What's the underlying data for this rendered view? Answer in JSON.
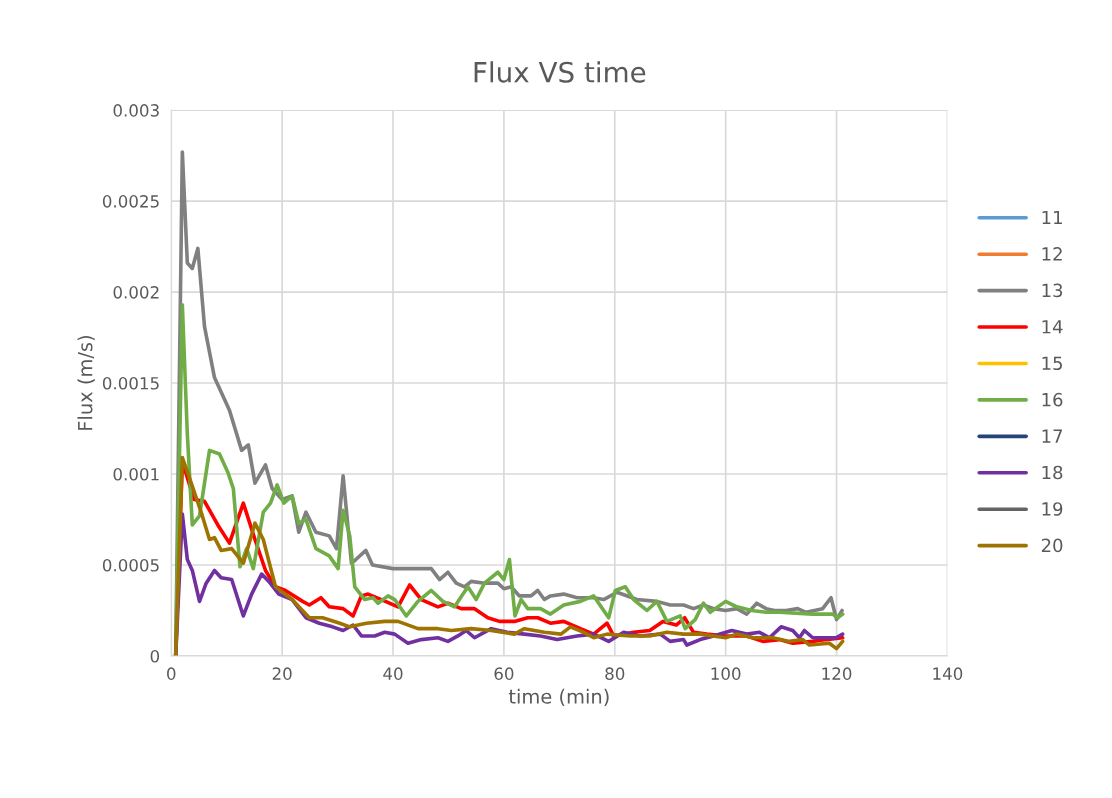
{
  "chart_data": {
    "type": "line",
    "title": "Flux VS time",
    "xlabel": "time (min)",
    "ylabel": "Flux (m/s)",
    "xlim": [
      0,
      140
    ],
    "xticks": [
      0,
      20,
      40,
      60,
      80,
      100,
      120,
      140
    ],
    "ylim": [
      0,
      0.003
    ],
    "yticks": [
      {
        "value": 0,
        "label": "0"
      },
      0.0005,
      0.001,
      0.0015,
      0.002,
      0.0025,
      0.003
    ],
    "grid": true,
    "legend": "right",
    "marker": "none",
    "line_style": "solid",
    "series": [
      {
        "name": "11",
        "color": "#5b9bd5"
      },
      {
        "name": "12",
        "color": "#ed7d31"
      },
      {
        "name": "13",
        "color": "#808080",
        "x": [
          0.8,
          2.0,
          2.9,
          3.8,
          4.8,
          6.0,
          7.8,
          10.5,
          12.7,
          13.9,
          15.1,
          17.0,
          18.2,
          20.0,
          21.8,
          23.0,
          24.3,
          26.1,
          28.5,
          29.8,
          31.0,
          32.5,
          33.3,
          35.1,
          36.3,
          40.0,
          43.3,
          46.9,
          48.4,
          49.9,
          51.4,
          52.9,
          54.1,
          56.5,
          58.9,
          60.0,
          61.3,
          62.8,
          64.9,
          66.1,
          67.3,
          68.4,
          70.8,
          73.2,
          76.2,
          78.0,
          80.4,
          84.0,
          87.6,
          90.0,
          92.4,
          94.2,
          96.0,
          97.8,
          100.0,
          102.0,
          103.8,
          105.6,
          107.3,
          108.8,
          110.9,
          113.0,
          114.5,
          117.5,
          119.0,
          120.0,
          121.0
        ],
        "values": [
          0,
          0.00277,
          0.00216,
          0.00213,
          0.00224,
          0.00181,
          0.00153,
          0.00135,
          0.00113,
          0.00116,
          0.00095,
          0.00105,
          0.00092,
          0.00086,
          0.00088,
          0.00068,
          0.00079,
          0.00068,
          0.00066,
          0.00059,
          0.00099,
          0.00051,
          0.00053,
          0.00058,
          0.0005,
          0.00048,
          0.00048,
          0.00048,
          0.00042,
          0.00046,
          0.0004,
          0.00038,
          0.00041,
          0.0004,
          0.0004,
          0.00037,
          0.00038,
          0.00033,
          0.00033,
          0.00036,
          0.00031,
          0.00033,
          0.00034,
          0.00032,
          0.00032,
          0.00031,
          0.00035,
          0.00031,
          0.0003,
          0.00028,
          0.00028,
          0.00026,
          0.00028,
          0.00026,
          0.00025,
          0.00026,
          0.00023,
          0.00029,
          0.00026,
          0.00025,
          0.00025,
          0.00026,
          0.00024,
          0.00026,
          0.00032,
          0.0002,
          0.00025
        ]
      },
      {
        "name": "14",
        "color": "#ff0000",
        "x": [
          0.8,
          2.0,
          4.1,
          6.0,
          8.4,
          10.5,
          13.0,
          15.1,
          17.0,
          18.8,
          20.6,
          23.7,
          24.9,
          27.0,
          28.5,
          31.0,
          32.8,
          34.3,
          35.5,
          37.9,
          40.9,
          43.0,
          45.1,
          48.1,
          49.9,
          52.3,
          54.7,
          57.1,
          59.2,
          61.9,
          64.3,
          66.1,
          68.4,
          70.8,
          73.8,
          76.2,
          78.6,
          79.8,
          83.4,
          86.3,
          88.7,
          91.1,
          92.6,
          93.6,
          94.2,
          96.6,
          100.0,
          103.8,
          106.7,
          109.7,
          112.1,
          115.7,
          118.1,
          121.1
        ],
        "values": [
          0,
          0.00107,
          0.00086,
          0.00085,
          0.00072,
          0.00062,
          0.00084,
          0.00064,
          0.00047,
          0.00038,
          0.00036,
          0.0003,
          0.00028,
          0.00032,
          0.00027,
          0.00026,
          0.00022,
          0.00033,
          0.00034,
          0.00031,
          0.00027,
          0.00039,
          0.00031,
          0.00027,
          0.00029,
          0.00026,
          0.00026,
          0.00021,
          0.00019,
          0.00019,
          0.00021,
          0.00021,
          0.00018,
          0.00019,
          0.00015,
          0.00012,
          0.00018,
          0.00011,
          0.00013,
          0.00014,
          0.00019,
          0.00017,
          0.00021,
          0.00016,
          0.00013,
          0.00012,
          0.00011,
          0.00011,
          8e-05,
          9e-05,
          7e-05,
          8e-05,
          9e-05,
          0.0001
        ]
      },
      {
        "name": "15",
        "color": "#ffc000"
      },
      {
        "name": "16",
        "color": "#70ad47",
        "x": [
          0.8,
          2.0,
          2.9,
          3.8,
          5.1,
          6.9,
          8.7,
          10.2,
          11.2,
          12.4,
          13.6,
          14.8,
          16.6,
          17.9,
          19.1,
          20.3,
          21.8,
          23.0,
          24.3,
          26.1,
          28.5,
          30.1,
          31.0,
          32.2,
          33.1,
          34.9,
          36.4,
          37.3,
          39.1,
          40.3,
          42.4,
          44.5,
          46.9,
          49.0,
          51.1,
          53.5,
          55.0,
          56.5,
          58.9,
          60.0,
          61.0,
          62.0,
          63.1,
          64.3,
          66.6,
          68.4,
          70.8,
          73.8,
          76.2,
          78.9,
          80.1,
          81.9,
          83.4,
          85.8,
          87.6,
          89.4,
          91.8,
          92.7,
          94.5,
          96.0,
          97.2,
          100.0,
          102.0,
          104.7,
          107.3,
          109.7,
          115.7,
          119.3,
          120.2,
          121.1
        ],
        "values": [
          0,
          0.00193,
          0.00122,
          0.00072,
          0.00077,
          0.00113,
          0.00111,
          0.00101,
          0.00092,
          0.00049,
          0.00059,
          0.00048,
          0.00079,
          0.00084,
          0.00094,
          0.00084,
          0.00088,
          0.00073,
          0.00075,
          0.00059,
          0.00055,
          0.00048,
          0.0008,
          0.00066,
          0.00038,
          0.00031,
          0.00032,
          0.00029,
          0.00033,
          0.00031,
          0.00022,
          0.0003,
          0.00036,
          0.0003,
          0.00027,
          0.00038,
          0.00031,
          0.0004,
          0.00046,
          0.00042,
          0.00053,
          0.00022,
          0.00031,
          0.00026,
          0.00026,
          0.00023,
          0.00028,
          0.0003,
          0.00033,
          0.00021,
          0.00036,
          0.00038,
          0.00031,
          0.00025,
          0.0003,
          0.00019,
          0.00022,
          0.00015,
          0.0002,
          0.00029,
          0.00024,
          0.0003,
          0.00027,
          0.00025,
          0.00024,
          0.00024,
          0.00023,
          0.00023,
          0.00021,
          0.00023
        ]
      },
      {
        "name": "17",
        "color": "#264478"
      },
      {
        "name": "18",
        "color": "#7030a0",
        "x": [
          0.8,
          2.0,
          2.9,
          3.8,
          5.1,
          6.3,
          7.8,
          9.0,
          10.9,
          13.0,
          14.5,
          16.3,
          17.6,
          19.4,
          21.8,
          24.3,
          26.7,
          29.1,
          31.0,
          32.8,
          34.3,
          36.7,
          38.5,
          40.3,
          42.7,
          45.1,
          48.1,
          49.9,
          51.7,
          53.2,
          54.7,
          57.7,
          60.6,
          63.7,
          66.6,
          69.6,
          73.2,
          76.2,
          78.9,
          81.6,
          84.6,
          88.2,
          90.0,
          92.4,
          93.0,
          95.4,
          97.8,
          101.1,
          103.8,
          106.1,
          107.9,
          110.0,
          112.1,
          113.3,
          114.2,
          115.7,
          119.9,
          121.1
        ],
        "values": [
          0,
          0.00078,
          0.00053,
          0.00047,
          0.0003,
          0.0004,
          0.00047,
          0.00043,
          0.00042,
          0.00022,
          0.00034,
          0.00045,
          0.00041,
          0.00034,
          0.00031,
          0.00021,
          0.00018,
          0.00016,
          0.00014,
          0.00017,
          0.00011,
          0.00011,
          0.00013,
          0.00012,
          7e-05,
          9e-05,
          0.0001,
          8e-05,
          0.00011,
          0.00014,
          0.0001,
          0.00015,
          0.00013,
          0.00012,
          0.00011,
          9e-05,
          0.00011,
          0.00012,
          8e-05,
          0.00013,
          0.00011,
          0.00012,
          8e-05,
          9e-05,
          6e-05,
          9e-05,
          0.00011,
          0.00014,
          0.00012,
          0.00013,
          0.0001,
          0.00016,
          0.00014,
          0.0001,
          0.00014,
          0.0001,
          0.0001,
          0.00012
        ]
      },
      {
        "name": "19",
        "color": "#636363"
      },
      {
        "name": "20",
        "color": "#9e7300",
        "x": [
          0.8,
          2.0,
          3.5,
          5.4,
          6.9,
          7.8,
          9.0,
          10.9,
          13.0,
          15.1,
          16.6,
          18.8,
          21.8,
          24.9,
          27.3,
          30.4,
          32.2,
          35.2,
          38.5,
          40.9,
          44.5,
          48.1,
          50.5,
          54.1,
          57.7,
          61.9,
          63.7,
          67.3,
          70.3,
          72.0,
          74.4,
          76.2,
          78.6,
          82.8,
          86.3,
          89.4,
          92.4,
          95.4,
          100.0,
          102.0,
          105.0,
          108.5,
          111.5,
          113.9,
          115.1,
          118.7,
          120.0,
          121.1
        ],
        "values": [
          0,
          0.00109,
          0.00096,
          0.00079,
          0.00064,
          0.00065,
          0.00058,
          0.00059,
          0.00051,
          0.00073,
          0.00064,
          0.00038,
          0.00031,
          0.00021,
          0.00021,
          0.00018,
          0.00016,
          0.00018,
          0.00019,
          0.00019,
          0.00015,
          0.00015,
          0.00014,
          0.00015,
          0.00014,
          0.00012,
          0.00015,
          0.00013,
          0.00012,
          0.00016,
          0.00013,
          0.0001,
          0.00012,
          0.00011,
          0.00011,
          0.00013,
          0.00012,
          0.00012,
          0.0001,
          0.00012,
          0.0001,
          0.0001,
          8e-05,
          9e-05,
          6e-05,
          7e-05,
          4e-05,
          8e-05
        ]
      }
    ]
  }
}
